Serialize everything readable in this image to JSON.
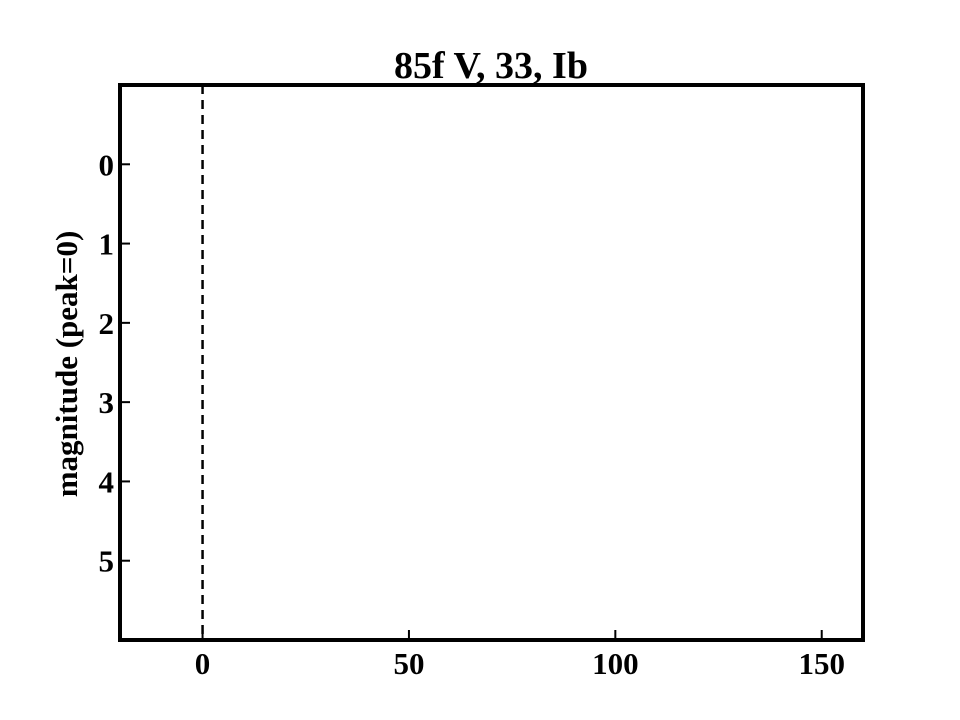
{
  "chart_data": {
    "type": "line",
    "title": "85f V, 33, Ib",
    "xlabel": "",
    "ylabel": "magnitude (peak=0)",
    "xlim": [
      -20,
      160
    ],
    "ylim": [
      6,
      -1
    ],
    "y_inverted": true,
    "xticks": [
      0,
      50,
      100,
      150
    ],
    "yticks": [
      0,
      1,
      2,
      3,
      4,
      5
    ],
    "grid": false,
    "legend": "none",
    "series": [],
    "annotations": [
      {
        "type": "vline",
        "x": 0,
        "style": "dashed",
        "color": "#000000"
      }
    ]
  }
}
